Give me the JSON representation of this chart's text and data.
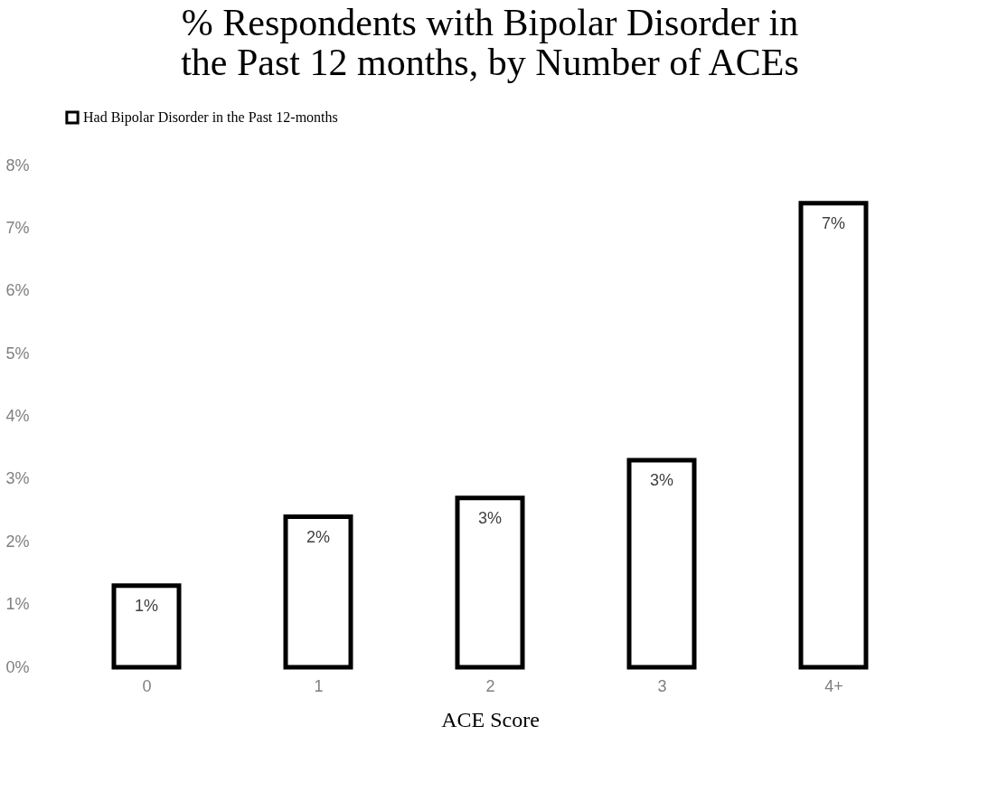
{
  "chart_data": {
    "type": "bar",
    "title": [
      "% Respondents with Bipolar Disorder in",
      "the Past 12 months, by Number of ACEs"
    ],
    "xlabel": "ACE Score",
    "categories": [
      "0",
      "1",
      "2",
      "3",
      "4+"
    ],
    "series": [
      {
        "name": "Had Bipolar Disorder in the Past 12-months",
        "color": "#000000",
        "values": [
          1.3,
          2.4,
          2.7,
          3.3,
          7.4
        ],
        "value_labels": [
          "1%",
          "2%",
          "3%",
          "3%",
          "7%"
        ]
      }
    ],
    "ylim": [
      0,
      8
    ],
    "yticks": [
      {
        "value": 0,
        "label": "0%"
      },
      {
        "value": 1,
        "label": "1%"
      },
      {
        "value": 2,
        "label": "2%"
      },
      {
        "value": 3,
        "label": "3%"
      },
      {
        "value": 4,
        "label": "4%"
      },
      {
        "value": 5,
        "label": "5%"
      },
      {
        "value": 6,
        "label": "6%"
      },
      {
        "value": 7,
        "label": "7%"
      },
      {
        "value": 8,
        "label": "8%"
      }
    ],
    "grid": false,
    "legend": "top"
  }
}
